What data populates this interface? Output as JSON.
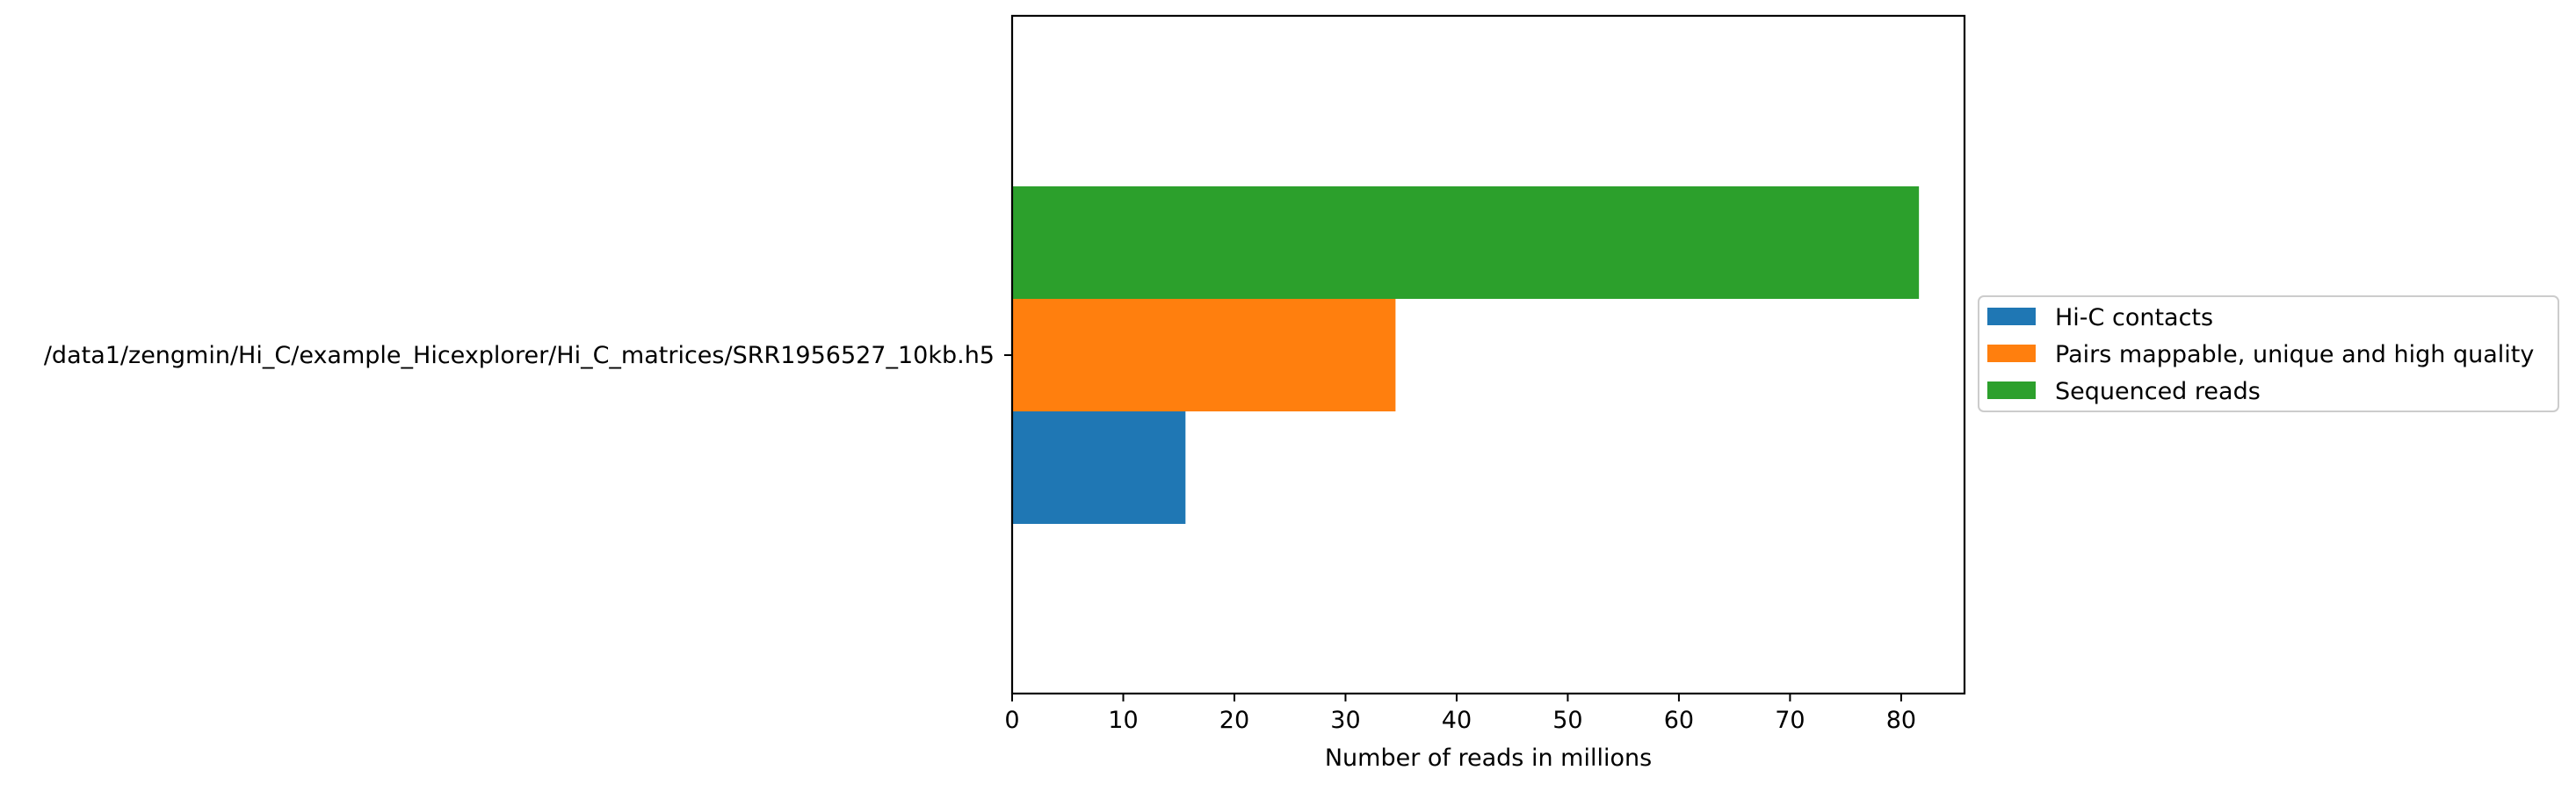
{
  "chart_data": {
    "type": "bar",
    "orientation": "horizontal",
    "categories": [
      "/data1/zengmin/Hi_C/example_Hicexplorer/Hi_C_matrices/SRR1956527_10kb.h5"
    ],
    "series": [
      {
        "name": "Hi-C contacts",
        "values": [
          15.6
        ],
        "color": "#1f77b4"
      },
      {
        "name": "Pairs mappable, unique and high quality",
        "values": [
          34.5
        ],
        "color": "#ff7f0e"
      },
      {
        "name": "Sequenced reads",
        "values": [
          81.6
        ],
        "color": "#2ca02c"
      }
    ],
    "title": "",
    "xlabel": "Number of reads in millions",
    "ylabel": "",
    "xlim": [
      0,
      85.7
    ],
    "xticks": [
      0,
      10,
      20,
      30,
      40,
      50,
      60,
      70,
      80
    ],
    "grid": false,
    "legend_position": "outside right"
  }
}
